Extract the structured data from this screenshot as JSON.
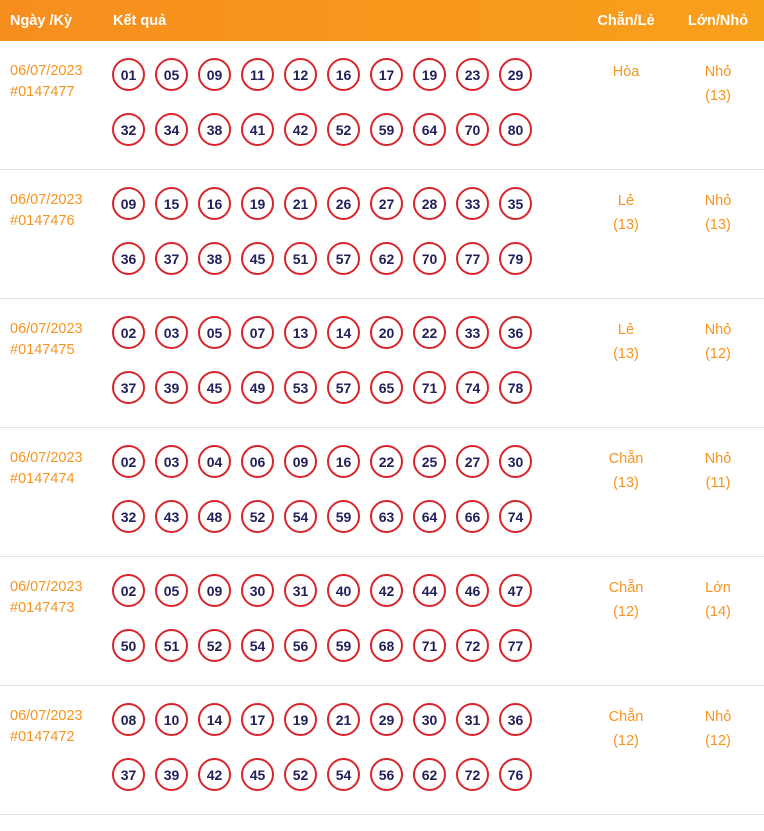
{
  "header": {
    "col_date": "Ngày /Kỳ",
    "col_result": "Kết quả",
    "col_even_odd": "Chẵn/Lẻ",
    "col_big_small": "Lớn/Nhỏ"
  },
  "colors": {
    "header_bg": "#F7941D",
    "accent_orange": "#F7941D",
    "ball_border_red": "#D7252B",
    "ball_text_navy": "#21215A",
    "divider_gray": "#e3e3e3"
  },
  "rows": [
    {
      "date": "06/07/2023",
      "draw": "#0147477",
      "numbers_line1": [
        "01",
        "05",
        "09",
        "11",
        "12",
        "16",
        "17",
        "19",
        "23",
        "29"
      ],
      "numbers_line2": [
        "32",
        "34",
        "38",
        "41",
        "42",
        "52",
        "59",
        "64",
        "70",
        "80"
      ],
      "even_odd": "Hòa",
      "even_odd_count": "",
      "big_small": "Nhỏ",
      "big_small_count": "(13)"
    },
    {
      "date": "06/07/2023",
      "draw": "#0147476",
      "numbers_line1": [
        "09",
        "15",
        "16",
        "19",
        "21",
        "26",
        "27",
        "28",
        "33",
        "35"
      ],
      "numbers_line2": [
        "36",
        "37",
        "38",
        "45",
        "51",
        "57",
        "62",
        "70",
        "77",
        "79"
      ],
      "even_odd": "Lẻ",
      "even_odd_count": "(13)",
      "big_small": "Nhỏ",
      "big_small_count": "(13)"
    },
    {
      "date": "06/07/2023",
      "draw": "#0147475",
      "numbers_line1": [
        "02",
        "03",
        "05",
        "07",
        "13",
        "14",
        "20",
        "22",
        "33",
        "36"
      ],
      "numbers_line2": [
        "37",
        "39",
        "45",
        "49",
        "53",
        "57",
        "65",
        "71",
        "74",
        "78"
      ],
      "even_odd": "Lẻ",
      "even_odd_count": "(13)",
      "big_small": "Nhỏ",
      "big_small_count": "(12)"
    },
    {
      "date": "06/07/2023",
      "draw": "#0147474",
      "numbers_line1": [
        "02",
        "03",
        "04",
        "06",
        "09",
        "16",
        "22",
        "25",
        "27",
        "30"
      ],
      "numbers_line2": [
        "32",
        "43",
        "48",
        "52",
        "54",
        "59",
        "63",
        "64",
        "66",
        "74"
      ],
      "even_odd": "Chẵn",
      "even_odd_count": "(13)",
      "big_small": "Nhỏ",
      "big_small_count": "(11)"
    },
    {
      "date": "06/07/2023",
      "draw": "#0147473",
      "numbers_line1": [
        "02",
        "05",
        "09",
        "30",
        "31",
        "40",
        "42",
        "44",
        "46",
        "47"
      ],
      "numbers_line2": [
        "50",
        "51",
        "52",
        "54",
        "56",
        "59",
        "68",
        "71",
        "72",
        "77"
      ],
      "even_odd": "Chẵn",
      "even_odd_count": "(12)",
      "big_small": "Lớn",
      "big_small_count": "(14)"
    },
    {
      "date": "06/07/2023",
      "draw": "#0147472",
      "numbers_line1": [
        "08",
        "10",
        "14",
        "17",
        "19",
        "21",
        "29",
        "30",
        "31",
        "36"
      ],
      "numbers_line2": [
        "37",
        "39",
        "42",
        "45",
        "52",
        "54",
        "56",
        "62",
        "72",
        "76"
      ],
      "even_odd": "Chẵn",
      "even_odd_count": "(12)",
      "big_small": "Nhỏ",
      "big_small_count": "(12)"
    }
  ]
}
